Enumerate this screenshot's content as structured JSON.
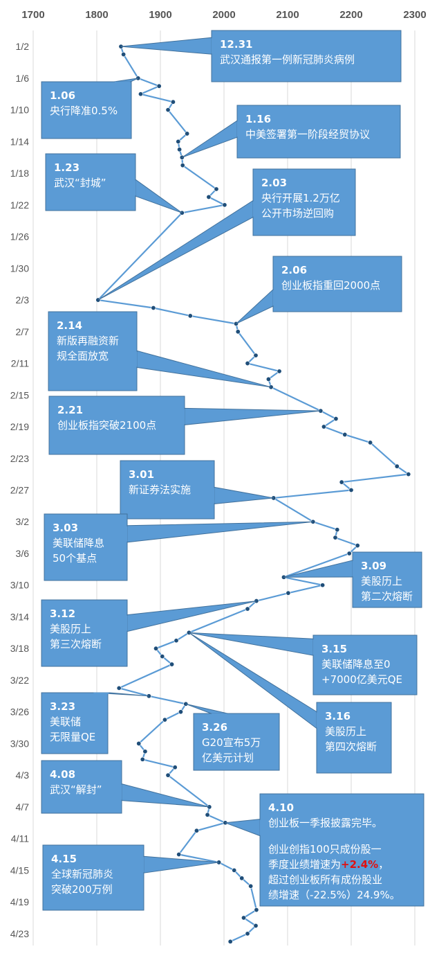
{
  "chart_data": {
    "type": "line",
    "orientation": "horizontal-values-vertical-dates",
    "xlim": [
      1700,
      2300
    ],
    "x_ticks": [
      1700,
      1800,
      1900,
      2000,
      2100,
      2200,
      2300
    ],
    "x_tick_labels": [
      "1700",
      "1800",
      "1900",
      "2000",
      "2100",
      "2200",
      "2300"
    ],
    "y_tick_labels": [
      "1/2",
      "1/6",
      "1/10",
      "1/14",
      "1/18",
      "1/22",
      "1/26",
      "1/30",
      "2/3",
      "2/7",
      "2/11",
      "2/15",
      "2/19",
      "2/23",
      "2/27",
      "3/2",
      "3/6",
      "3/10",
      "3/14",
      "3/18",
      "3/22",
      "3/26",
      "3/30",
      "4/3",
      "4/7",
      "4/11",
      "4/15",
      "4/19",
      "4/23"
    ],
    "y_tick_positions": [
      0,
      4,
      8,
      12,
      16,
      20,
      24,
      28,
      32,
      36,
      40,
      44,
      48,
      52,
      56,
      60,
      64,
      68,
      72,
      76,
      80,
      84,
      88,
      92,
      96,
      100,
      104,
      108,
      112
    ],
    "ylim": [
      -1.5,
      113.5
    ],
    "grid": "vertical",
    "series_color": "#5b9bd5",
    "marker_color": "#1f4e79",
    "points": [
      {
        "date": "1/2",
        "v": 1838
      },
      {
        "date": "1/3",
        "v": 1842
      },
      {
        "date": "1/6",
        "v": 1865
      },
      {
        "date": "1/7",
        "v": 1898
      },
      {
        "date": "1/8",
        "v": 1869
      },
      {
        "date": "1/9",
        "v": 1920
      },
      {
        "date": "1/10",
        "v": 1912
      },
      {
        "date": "1/13",
        "v": 1942
      },
      {
        "date": "1/14",
        "v": 1928
      },
      {
        "date": "1/15",
        "v": 1930
      },
      {
        "date": "1/16",
        "v": 1934
      },
      {
        "date": "1/17",
        "v": 1935
      },
      {
        "date": "1/20",
        "v": 1988
      },
      {
        "date": "1/21",
        "v": 1976
      },
      {
        "date": "1/22",
        "v": 2001
      },
      {
        "date": "1/23",
        "v": 1934
      },
      {
        "date": "2/3",
        "v": 1802
      },
      {
        "date": "2/4",
        "v": 1889
      },
      {
        "date": "2/5",
        "v": 1947
      },
      {
        "date": "2/6",
        "v": 2019
      },
      {
        "date": "2/7",
        "v": 2022
      },
      {
        "date": "2/10",
        "v": 2050
      },
      {
        "date": "2/11",
        "v": 2037
      },
      {
        "date": "2/12",
        "v": 2087
      },
      {
        "date": "2/13",
        "v": 2070
      },
      {
        "date": "2/14",
        "v": 2074
      },
      {
        "date": "2/17",
        "v": 2152
      },
      {
        "date": "2/18",
        "v": 2176
      },
      {
        "date": "2/19",
        "v": 2157
      },
      {
        "date": "2/20",
        "v": 2190
      },
      {
        "date": "2/21",
        "v": 2230
      },
      {
        "date": "2/24",
        "v": 2272
      },
      {
        "date": "2/25",
        "v": 2290
      },
      {
        "date": "2/26",
        "v": 2185
      },
      {
        "date": "2/27",
        "v": 2200
      },
      {
        "date": "2/28",
        "v": 2078
      },
      {
        "date": "3/2",
        "v": 2140
      },
      {
        "date": "3/3",
        "v": 2178
      },
      {
        "date": "3/4",
        "v": 2175
      },
      {
        "date": "3/5",
        "v": 2210
      },
      {
        "date": "3/6",
        "v": 2197
      },
      {
        "date": "3/9",
        "v": 2094
      },
      {
        "date": "3/10",
        "v": 2155
      },
      {
        "date": "3/11",
        "v": 2101
      },
      {
        "date": "3/12",
        "v": 2051
      },
      {
        "date": "3/13",
        "v": 2037
      },
      {
        "date": "3/16",
        "v": 1945
      },
      {
        "date": "3/17",
        "v": 1925
      },
      {
        "date": "3/18",
        "v": 1893
      },
      {
        "date": "3/19",
        "v": 1903
      },
      {
        "date": "3/20",
        "v": 1918
      },
      {
        "date": "3/23",
        "v": 1835
      },
      {
        "date": "3/24",
        "v": 1882
      },
      {
        "date": "3/25",
        "v": 1940
      },
      {
        "date": "3/26",
        "v": 1932
      },
      {
        "date": "3/27",
        "v": 1907
      },
      {
        "date": "3/30",
        "v": 1866
      },
      {
        "date": "3/31",
        "v": 1876
      },
      {
        "date": "4/1",
        "v": 1872
      },
      {
        "date": "4/2",
        "v": 1923
      },
      {
        "date": "4/3",
        "v": 1912
      },
      {
        "date": "4/7",
        "v": 1977
      },
      {
        "date": "4/8",
        "v": 1974
      },
      {
        "date": "4/9",
        "v": 2002
      },
      {
        "date": "4/10",
        "v": 1957
      },
      {
        "date": "4/13",
        "v": 1929
      },
      {
        "date": "4/14",
        "v": 1992
      },
      {
        "date": "4/15",
        "v": 2016
      },
      {
        "date": "4/16",
        "v": 2028
      },
      {
        "date": "4/17",
        "v": 2042
      },
      {
        "date": "4/20",
        "v": 2051
      },
      {
        "date": "4/21",
        "v": 2031
      },
      {
        "date": "4/22",
        "v": 2050
      },
      {
        "date": "4/23",
        "v": 2037
      },
      {
        "date": "4/24",
        "v": 2010
      }
    ]
  },
  "annotations": [
    {
      "id": "a1231",
      "date": "12.31",
      "lines": [
        "武汉通报第一例新冠肺炎病例"
      ],
      "target": {
        "date": "1/2",
        "v": 1838
      }
    },
    {
      "id": "a0106",
      "date": "1.06",
      "lines": [
        "央行降准0.5%"
      ],
      "target": {
        "date": "1/6",
        "v": 1865
      }
    },
    {
      "id": "a0116",
      "date": "1.16",
      "lines": [
        "中美签署第一阶段经贸协议"
      ],
      "target": {
        "date": "1/16",
        "v": 1934
      }
    },
    {
      "id": "a0123",
      "date": "1.23",
      "lines": [
        "武汉“封城”"
      ],
      "target": {
        "date": "1/23",
        "v": 1934
      }
    },
    {
      "id": "a0203",
      "date": "2.03",
      "lines": [
        "央行开展1.2万亿",
        "公开市场逆回购"
      ],
      "target": {
        "date": "2/3",
        "v": 1802
      }
    },
    {
      "id": "a0206",
      "date": "2.06",
      "lines": [
        "创业板指重回2000点"
      ],
      "target": {
        "date": "2/6",
        "v": 2019
      }
    },
    {
      "id": "a0214",
      "date": "2.14",
      "lines": [
        "新版再融资新",
        "规全面放宽"
      ],
      "target": {
        "date": "2/14",
        "v": 2074
      }
    },
    {
      "id": "a0221",
      "date": "2.21",
      "lines": [
        "创业板指突破2100点"
      ],
      "target": {
        "date": "2/17",
        "v": 2152
      }
    },
    {
      "id": "a0301",
      "date": "3.01",
      "lines": [
        "新证券法实施"
      ],
      "target": {
        "date": "2/28",
        "v": 2078
      }
    },
    {
      "id": "a0303",
      "date": "3.03",
      "lines": [
        "美联储降息",
        "50个基点"
      ],
      "target": {
        "date": "3/2",
        "v": 2140
      }
    },
    {
      "id": "a0309",
      "date": "3.09",
      "lines": [
        "美股历上",
        "第二次熔断"
      ],
      "target": {
        "date": "3/9",
        "v": 2094
      }
    },
    {
      "id": "a0312",
      "date": "3.12",
      "lines": [
        "美股历上",
        "第三次熔断"
      ],
      "target": {
        "date": "3/12",
        "v": 2051
      }
    },
    {
      "id": "a0315",
      "date": "3.15",
      "lines": [
        "美联储降息至0",
        "+7000亿美元QE"
      ],
      "target": {
        "date": "3/16",
        "v": 1945
      }
    },
    {
      "id": "a0316",
      "date": "3.16",
      "lines": [
        "美股历上",
        "第四次熔断"
      ],
      "target": {
        "date": "3/16",
        "v": 1945
      }
    },
    {
      "id": "a0323",
      "date": "3.23",
      "lines": [
        "美联储",
        "无限量QE"
      ],
      "target": {
        "date": "3/24",
        "v": 1882
      }
    },
    {
      "id": "a0326",
      "date": "3.26",
      "lines": [
        "G20宣布5万",
        "亿美元计划"
      ],
      "target": {
        "date": "3/25",
        "v": 1940
      }
    },
    {
      "id": "a0408",
      "date": "4.08",
      "lines": [
        "武汉“解封”"
      ],
      "target": {
        "date": "4/7",
        "v": 1977
      }
    },
    {
      "id": "a0410",
      "date": "4.10",
      "lines": [
        "创业板一季报披露完毕。",
        "",
        "创业创指100只成份股一",
        "季度业绩增速为+2.4%，",
        "超过创业板所有成份股业",
        "绩增速（-22.5%）24.9%。"
      ],
      "highlight": "+2.4%",
      "target": {
        "date": "4/9",
        "v": 2002
      }
    },
    {
      "id": "a0415",
      "date": "4.15",
      "lines": [
        "全球新冠肺炎",
        "突破200万例"
      ],
      "target": {
        "date": "4/14",
        "v": 1992
      }
    }
  ],
  "colors": {
    "callout_fill": "#5b9bd5",
    "callout_stroke": "#41719c",
    "line": "#5b9bd5",
    "highlight": "#e01010"
  }
}
